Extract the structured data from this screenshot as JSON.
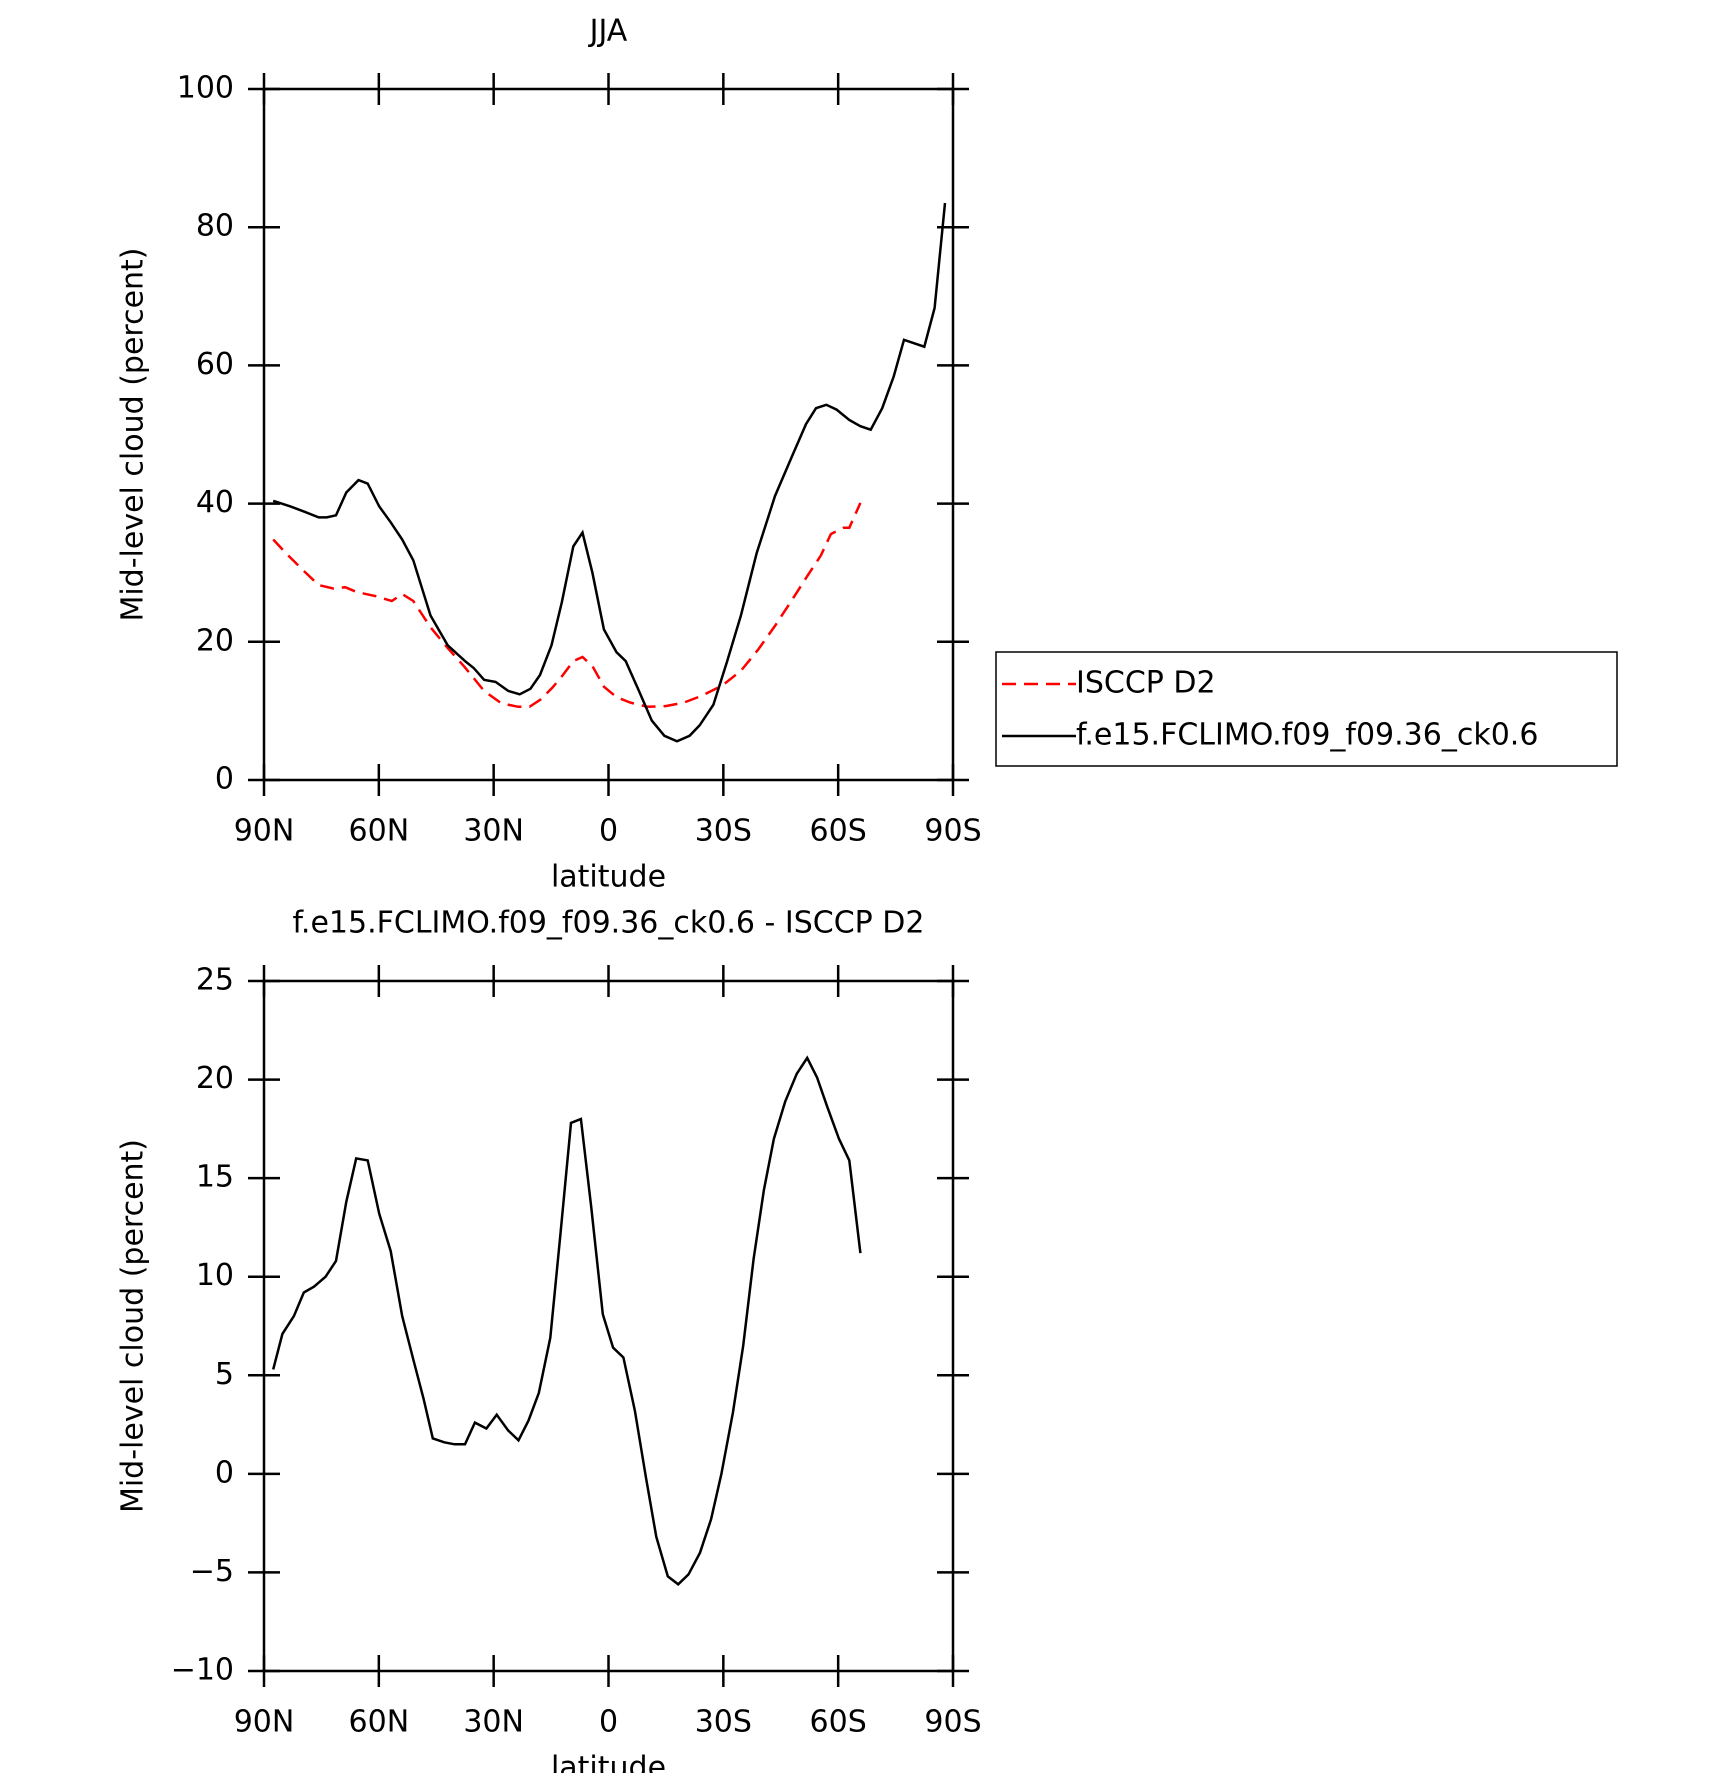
{
  "chart_data": [
    {
      "type": "line",
      "title": "JJA",
      "xlabel": "latitude",
      "ylabel": "Mid-level cloud (percent)",
      "xlim": [
        90,
        -90
      ],
      "xticks": [
        {
          "value": 90,
          "label": "90N"
        },
        {
          "value": 60,
          "label": "60N"
        },
        {
          "value": 30,
          "label": "30N"
        },
        0,
        {
          "value": -30,
          "label": "30S"
        },
        {
          "value": -60,
          "label": "60S"
        },
        {
          "value": -90,
          "label": "90S"
        }
      ],
      "ylim": [
        0,
        100
      ],
      "yticks": [
        0,
        20,
        40,
        60,
        80,
        100
      ],
      "legend": "right",
      "series": [
        {
          "name": "ISCCP D2",
          "color": "#ff0000",
          "style": "dashed",
          "x": [
            87.6,
            83.7,
            79.9,
            75.7,
            71.8,
            68.8,
            65.8,
            60.8,
            56.6,
            53.9,
            51,
            46.5,
            42,
            37.5,
            32.5,
            28,
            23.6,
            20.6,
            17.6,
            14.6,
            11.9,
            9.2,
            6.8,
            4.2,
            1.2,
            -2.1,
            -5.7,
            -10.2,
            -14.9,
            -19.7,
            -24.4,
            -29.8,
            -34.6,
            -39,
            -43.5,
            -48,
            -51.9,
            -55.5,
            -58.1,
            -61.4,
            -62.9,
            -65.8
          ],
          "values": [
            34.8,
            32.5,
            30.4,
            28.2,
            27.7,
            27.9,
            27.2,
            26.6,
            25.9,
            26.9,
            25.9,
            22.1,
            19.1,
            16.3,
            12.9,
            11.1,
            10.6,
            10.6,
            11.7,
            13.4,
            15.2,
            17.2,
            17.8,
            16.5,
            13.5,
            12.0,
            11.2,
            10.6,
            10.7,
            11.2,
            12.2,
            13.7,
            15.8,
            18.8,
            22.3,
            26.1,
            29.5,
            32.5,
            35.6,
            36.5,
            36.5,
            40.1
          ]
        },
        {
          "name": "f.e15.FCLIMO.f09_f09.36_ck0.6",
          "color": "#000000",
          "style": "solid",
          "x": [
            87.6,
            83.1,
            79.3,
            75.7,
            73.6,
            71.2,
            68.5,
            65.3,
            62.9,
            59.9,
            56.9,
            53.9,
            51,
            46.5,
            42,
            37.5,
            35.2,
            32.5,
            29.5,
            26.2,
            23.2,
            20.4,
            17.9,
            14.9,
            12.2,
            9.2,
            6.8,
            4.2,
            1.2,
            -2.1,
            -4.5,
            -7.7,
            -11.3,
            -14.6,
            -17.9,
            -21.2,
            -23.8,
            -27.4,
            -31,
            -34.6,
            -38.7,
            -43.5,
            -48,
            -51.6,
            -54.2,
            -56.9,
            -59.6,
            -62.9,
            -65.8,
            -68.5,
            -71.5,
            -74.5,
            -77.2,
            -82.5,
            -85.2,
            -87.9
          ],
          "values": [
            40.4,
            39.6,
            38.8,
            38.0,
            38.0,
            38.3,
            41.6,
            43.4,
            42.9,
            39.6,
            37.3,
            34.8,
            31.8,
            23.8,
            19.5,
            17.2,
            16.2,
            14.5,
            14.2,
            12.9,
            12.4,
            13.2,
            15.2,
            19.5,
            25.7,
            33.8,
            35.8,
            30.0,
            21.8,
            18.5,
            17.2,
            13.2,
            8.6,
            6.4,
            5.6,
            6.4,
            7.9,
            10.9,
            17.2,
            23.8,
            32.8,
            41.1,
            46.9,
            51.5,
            53.8,
            54.3,
            53.6,
            52.1,
            51.2,
            50.7,
            53.8,
            58.4,
            63.7,
            62.7,
            68.3,
            83.5
          ]
        }
      ]
    },
    {
      "type": "line",
      "title": "f.e15.FCLIMO.f09_f09.36_ck0.6 - ISCCP D2",
      "xlabel": "latitude",
      "ylabel": "Mid-level cloud (percent)",
      "xlim": [
        90,
        -90
      ],
      "xticks": [
        {
          "value": 90,
          "label": "90N"
        },
        {
          "value": 60,
          "label": "60N"
        },
        {
          "value": 30,
          "label": "30N"
        },
        0,
        {
          "value": -30,
          "label": "30S"
        },
        {
          "value": -60,
          "label": "60S"
        },
        {
          "value": -90,
          "label": "90S"
        }
      ],
      "ylim": [
        -10,
        25
      ],
      "yticks": [
        {
          "value": -10,
          "label": "−10"
        },
        {
          "value": -5,
          "label": "−5"
        },
        0,
        5,
        10,
        15,
        20,
        25
      ],
      "series": [
        {
          "color": "#000000",
          "style": "solid",
          "x": [
            87.6,
            85.2,
            82.2,
            79.6,
            76.9,
            73.9,
            71.2,
            68.5,
            65.9,
            62.9,
            59.9,
            56.9,
            53.9,
            51,
            48.3,
            45.9,
            42.9,
            40.2,
            37.5,
            34.9,
            31.9,
            29.2,
            26.2,
            23.5,
            20.9,
            18.2,
            15.2,
            12.5,
            9.8,
            7.2,
            4.5,
            1.5,
            -1.2,
            -3.9,
            -6.9,
            -9.8,
            -12.5,
            -15.5,
            -18.2,
            -20.9,
            -23.9,
            -26.8,
            -29.5,
            -32.5,
            -35.2,
            -37.9,
            -40.6,
            -43.2,
            -46.2,
            -49.2,
            -51.9,
            -54.5,
            -57.2,
            -60.2,
            -62.9,
            -65.8
          ],
          "values": [
            5.3,
            7.1,
            8.0,
            9.2,
            9.5,
            10.0,
            10.8,
            13.8,
            16.0,
            15.9,
            13.2,
            11.3,
            8.0,
            5.8,
            3.8,
            1.8,
            1.6,
            1.5,
            1.5,
            2.6,
            2.3,
            3.0,
            2.2,
            1.7,
            2.7,
            4.1,
            6.9,
            12.3,
            17.8,
            18.0,
            13.5,
            8.1,
            6.4,
            5.9,
            3.2,
            -0.2,
            -3.2,
            -5.2,
            -5.6,
            -5.1,
            -4.0,
            -2.3,
            0.0,
            3.1,
            6.5,
            10.9,
            14.4,
            17.0,
            18.9,
            20.3,
            21.1,
            20.1,
            18.6,
            17.0,
            15.9,
            11.2
          ]
        }
      ]
    }
  ]
}
